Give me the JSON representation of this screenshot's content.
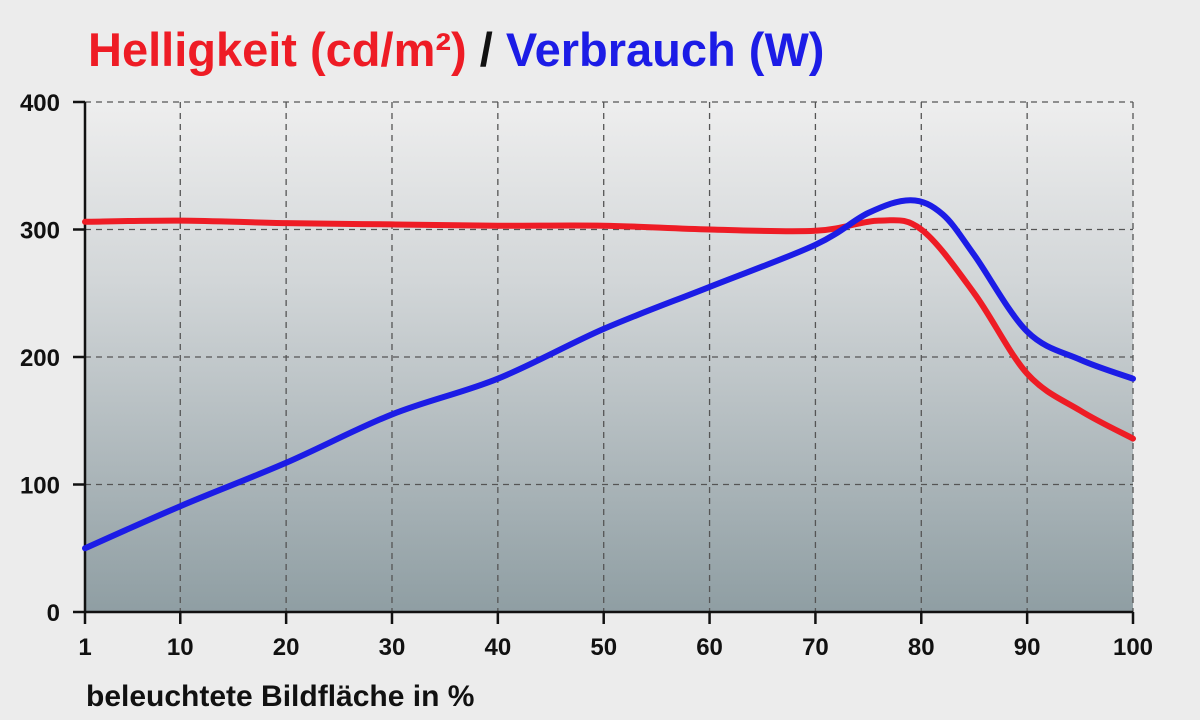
{
  "chart_data": {
    "type": "line",
    "title": {
      "part1": "Helligkeit (cd/m²)",
      "separator": " / ",
      "part2": "Verbrauch (W)"
    },
    "xlabel": "beleuchtete Bildfläche in %",
    "ylabel": "",
    "xlim": [
      1,
      100
    ],
    "ylim": [
      0,
      400
    ],
    "xticks": [
      1,
      10,
      20,
      30,
      40,
      50,
      60,
      70,
      80,
      90,
      100
    ],
    "yticks": [
      0,
      100,
      200,
      300,
      400
    ],
    "grid": true,
    "legend": "none",
    "series": [
      {
        "label": "Helligkeit (cd/m²)",
        "color": "#ee1c25",
        "points": [
          [
            1,
            306
          ],
          [
            10,
            307
          ],
          [
            20,
            305
          ],
          [
            30,
            304
          ],
          [
            40,
            303
          ],
          [
            50,
            303
          ],
          [
            60,
            300
          ],
          [
            70,
            299
          ],
          [
            76,
            307
          ],
          [
            80,
            300
          ],
          [
            85,
            250
          ],
          [
            90,
            187
          ],
          [
            95,
            158
          ],
          [
            100,
            136
          ]
        ]
      },
      {
        "label": "Verbrauch (W)",
        "color": "#1c1ce6",
        "points": [
          [
            1,
            50
          ],
          [
            10,
            83
          ],
          [
            20,
            117
          ],
          [
            30,
            155
          ],
          [
            40,
            183
          ],
          [
            50,
            222
          ],
          [
            60,
            255
          ],
          [
            70,
            288
          ],
          [
            75,
            313
          ],
          [
            79,
            323
          ],
          [
            82,
            312
          ],
          [
            85,
            280
          ],
          [
            90,
            220
          ],
          [
            95,
            198
          ],
          [
            100,
            183
          ]
        ]
      }
    ],
    "colors": {
      "title_part1": "#ee1c25",
      "title_separator": "#111111",
      "title_part2": "#1c1ce6"
    }
  }
}
